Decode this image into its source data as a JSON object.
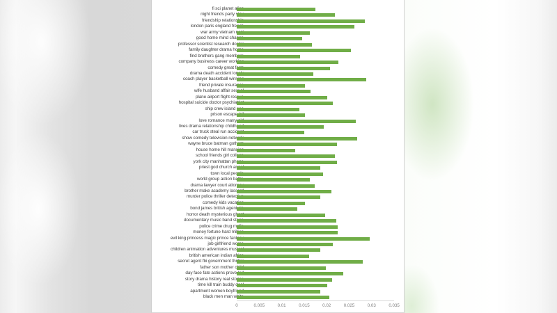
{
  "chart_data": {
    "type": "bar",
    "orientation": "horizontal",
    "title": "",
    "xlabel": "",
    "ylabel": "",
    "xlim": [
      0,
      0.035
    ],
    "x_ticks": [
      "0",
      "0.005",
      "0.01",
      "0.015",
      "0.02",
      "0.025",
      "0.03",
      "0.035"
    ],
    "grid": false,
    "legend": null,
    "bar_color": "#70AD47",
    "categories": [
      "fi sci planet alien",
      "night friends party stay",
      "friendship relationship",
      "london paris england french",
      "war army vietnam nazi",
      "good home mind change",
      "professor scientist research doctor",
      "family daughter drama home",
      "find brothers gang members",
      "company business career working",
      "comedy great farm",
      "drama death accident lonely",
      "coach player basketball winning",
      "friend private insurance",
      "wife husband affair sexual",
      "plane airport flight rescue",
      "hospital suicide doctor psychiatrist",
      "ship crew island sea",
      "prison escape jail",
      "love romance marry girl",
      "lives drama relationship childhood",
      "car truck steal run accident",
      "show comedy television network",
      "wayne bruce batman gotham",
      "house home hill mansion",
      "school friends girl college",
      "york city manhattan phone",
      "priest god church angel",
      "town local people",
      "world group action battle",
      "drama lawyer court attorney",
      "brother make academy lassard",
      "murder police thriller detective",
      "comedy kids vacation",
      "bond james british agent cia",
      "horror death mysterious ghost",
      "documentary music band stage",
      "police crime drug mafia",
      "money fortune hard million",
      "evil king princess magic prince fantasy",
      "job girlfriend worse",
      "children animation adventures musical",
      "british american indian africa",
      "secret agent fbi government thriller",
      "father son mother child",
      "day face fate actions prove led",
      "story drama history real stories",
      "time kill train buddy deal",
      "apartment women boyfriend",
      "black men man white"
    ],
    "values": [
      0.0175,
      0.0218,
      0.0285,
      0.0262,
      0.0162,
      0.0146,
      0.0167,
      0.0254,
      0.0141,
      0.0226,
      0.0207,
      0.017,
      0.0288,
      0.0152,
      0.0164,
      0.0201,
      0.0214,
      0.0139,
      0.0152,
      0.0265,
      0.0194,
      0.015,
      0.0268,
      0.0223,
      0.013,
      0.0218,
      0.0223,
      0.0186,
      0.0192,
      0.0163,
      0.0173,
      0.0211,
      0.0185,
      0.0152,
      0.0135,
      0.0197,
      0.0221,
      0.0224,
      0.0224,
      0.0296,
      0.0214,
      0.0186,
      0.0161,
      0.028,
      0.0198,
      0.0237,
      0.0212,
      0.0201,
      0.0186,
      0.0206
    ]
  }
}
